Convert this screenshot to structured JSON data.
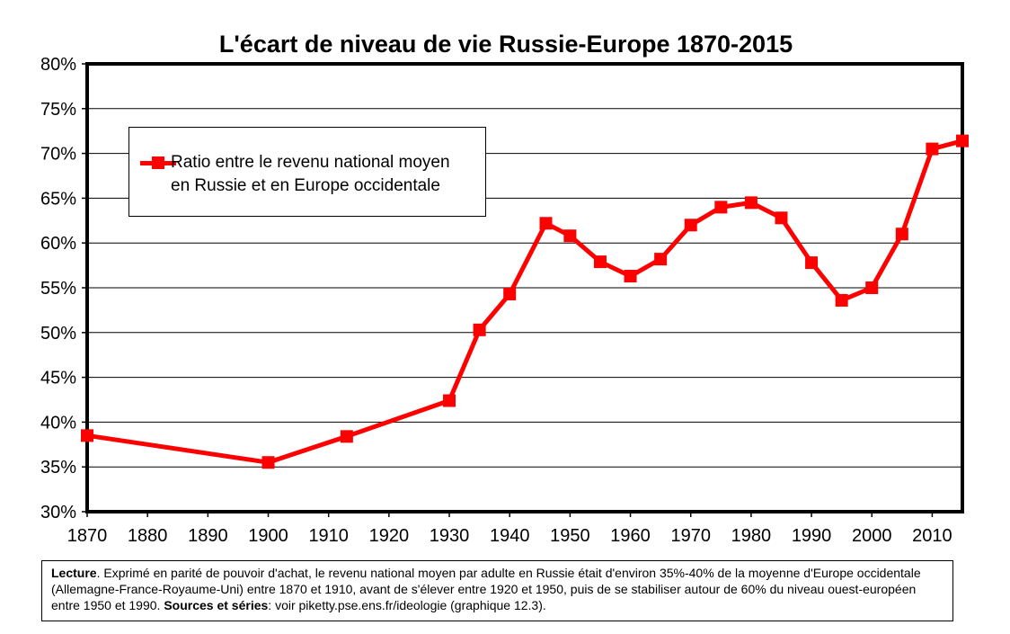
{
  "chart_data": {
    "type": "line",
    "title": "L'écart de niveau de vie Russie-Europe 1870-2015",
    "xlabel": "",
    "ylabel": "",
    "xlim": [
      1870,
      2015
    ],
    "ylim": [
      0.3,
      0.8
    ],
    "x_ticks": [
      1870,
      1880,
      1890,
      1900,
      1910,
      1920,
      1930,
      1940,
      1950,
      1960,
      1970,
      1980,
      1990,
      2000,
      2010
    ],
    "y_ticks": [
      "30%",
      "35%",
      "40%",
      "45%",
      "50%",
      "55%",
      "60%",
      "65%",
      "70%",
      "75%",
      "80%"
    ],
    "y_tick_values": [
      0.3,
      0.35,
      0.4,
      0.45,
      0.5,
      0.55,
      0.6,
      0.65,
      0.7,
      0.75,
      0.8
    ],
    "grid": "horizontal",
    "legend_position": "top-left",
    "series": [
      {
        "name": "Ratio entre le revenu national moyen\nen Russie et en Europe occidentale",
        "color": "#ff0000",
        "marker": "square",
        "x": [
          1870,
          1900,
          1913,
          1930,
          1935,
          1940,
          1946,
          1950,
          1955,
          1960,
          1965,
          1970,
          1975,
          1980,
          1985,
          1990,
          1995,
          2000,
          2005,
          2010,
          2015
        ],
        "y": [
          0.385,
          0.355,
          0.384,
          0.424,
          0.503,
          0.543,
          0.622,
          0.608,
          0.579,
          0.563,
          0.582,
          0.62,
          0.64,
          0.645,
          0.628,
          0.578,
          0.536,
          0.55,
          0.61,
          0.705,
          0.714
        ]
      }
    ]
  },
  "note": {
    "lecture_label": "Lecture",
    "lecture_text": ". Exprimé en parité de pouvoir d'achat, le revenu national moyen par adulte en Russie était d'environ 35%-40% de la moyenne d'Europe occidentale (Allemagne-France-Royaume-Uni) entre 1870 et 1910, avant de s'élever entre 1920 et 1950, puis de se stabiliser autour de 60% du niveau ouest-européen entre 1950 et 1990. ",
    "sources_label": "Sources et séries",
    "sources_text": ": voir piketty.pse.ens.fr/ideologie (graphique 12.3)."
  }
}
